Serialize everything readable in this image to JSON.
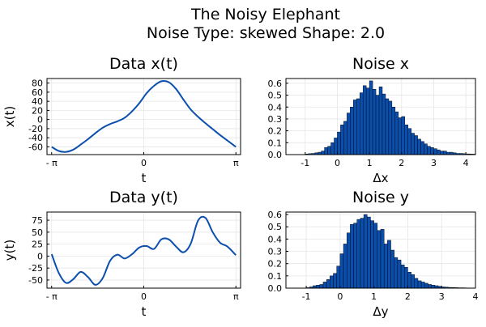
{
  "figure": {
    "title_line1": "The Noisy Elephant",
    "title_line2": "Noise Type: skewed Shape: 2.0"
  },
  "chart_data": [
    {
      "id": "data-x",
      "type": "line",
      "title": "Data x(t)",
      "xlabel": "t",
      "ylabel": "x(t)",
      "xlim": [
        -3.3,
        3.3
      ],
      "ylim": [
        -77,
        90
      ],
      "xticks": [
        -3.14159,
        0,
        3.14159
      ],
      "xticklabels": [
        "- π",
        "0",
        "π"
      ],
      "yticks": [
        80,
        60,
        40,
        20,
        0,
        -20,
        -40,
        -60
      ],
      "yticklabels": [
        "80",
        "60",
        "40",
        "20",
        "0",
        "-20",
        "-40",
        "-60"
      ],
      "grid": true,
      "legend": "none",
      "color": "#0b4fae",
      "x": [
        -3.14,
        -2.9,
        -2.65,
        -2.4,
        -2.15,
        -1.9,
        -1.65,
        -1.4,
        -1.15,
        -0.9,
        -0.65,
        -0.4,
        -0.15,
        0.1,
        0.35,
        0.6,
        0.85,
        1.1,
        1.35,
        1.6,
        1.85,
        2.1,
        2.35,
        2.6,
        2.85,
        3.14
      ],
      "y": [
        -60,
        -69,
        -71,
        -66,
        -55,
        -43,
        -30,
        -18,
        -10,
        -4,
        4,
        18,
        36,
        58,
        74,
        84,
        82,
        67,
        44,
        22,
        6,
        -8,
        -21,
        -34,
        -46,
        -60
      ]
    },
    {
      "id": "noise-x",
      "type": "bar",
      "title": "Noise x",
      "xlabel": "Δx",
      "ylabel": "",
      "xlim": [
        -1.6,
        4.3
      ],
      "ylim": [
        0,
        0.64
      ],
      "xticks": [
        -1,
        0,
        1,
        2,
        3,
        4
      ],
      "xticklabels": [
        "-1",
        "0",
        "1",
        "2",
        "3",
        "4"
      ],
      "yticks": [
        0.0,
        0.1,
        0.2,
        0.3,
        0.4,
        0.5,
        0.6
      ],
      "yticklabels": [
        "0.0",
        "0.1",
        "0.2",
        "0.3",
        "0.4",
        "0.5",
        "0.6"
      ],
      "grid": true,
      "legend": "none",
      "color": "#0b4fae",
      "bin_start": -1.0,
      "bin_width": 0.1,
      "values": [
        0.005,
        0.008,
        0.01,
        0.015,
        0.02,
        0.03,
        0.06,
        0.07,
        0.1,
        0.14,
        0.19,
        0.25,
        0.28,
        0.35,
        0.4,
        0.46,
        0.47,
        0.52,
        0.58,
        0.56,
        0.62,
        0.55,
        0.5,
        0.57,
        0.51,
        0.47,
        0.45,
        0.4,
        0.36,
        0.31,
        0.32,
        0.25,
        0.22,
        0.18,
        0.16,
        0.13,
        0.11,
        0.09,
        0.07,
        0.06,
        0.05,
        0.04,
        0.03,
        0.03,
        0.02,
        0.02,
        0.015,
        0.01,
        0.01,
        0.008,
        0.006,
        0.005,
        0.004
      ]
    },
    {
      "id": "data-y",
      "type": "line",
      "title": "Data y(t)",
      "xlabel": "t",
      "ylabel": "y(t)",
      "xlim": [
        -3.3,
        3.3
      ],
      "ylim": [
        -67,
        92
      ],
      "xticks": [
        -3.14159,
        0,
        3.14159
      ],
      "xticklabels": [
        "- π",
        "0",
        "π"
      ],
      "yticks": [
        75,
        50,
        25,
        0,
        -25,
        -50
      ],
      "yticklabels": [
        "75",
        "50",
        "25",
        "0",
        "-25",
        "-50"
      ],
      "grid": true,
      "legend": "none",
      "color": "#0b4fae",
      "x": [
        -3.14,
        -2.9,
        -2.65,
        -2.4,
        -2.15,
        -1.9,
        -1.65,
        -1.4,
        -1.15,
        -0.9,
        -0.65,
        -0.4,
        -0.15,
        0.1,
        0.35,
        0.6,
        0.85,
        1.1,
        1.35,
        1.6,
        1.85,
        2.1,
        2.35,
        2.6,
        2.85,
        3.14
      ],
      "y": [
        4,
        -35,
        -56,
        -48,
        -33,
        -44,
        -60,
        -46,
        -10,
        3,
        -5,
        4,
        18,
        21,
        15,
        35,
        35,
        20,
        8,
        26,
        74,
        80,
        50,
        28,
        20,
        2
      ]
    },
    {
      "id": "noise-y",
      "type": "bar",
      "title": "Noise y",
      "xlabel": "Δy",
      "ylabel": "",
      "xlim": [
        -1.6,
        4.0
      ],
      "ylim": [
        0,
        0.62
      ],
      "xticks": [
        -1,
        0,
        1,
        2,
        3,
        4
      ],
      "xticklabels": [
        "-1",
        "0",
        "1",
        "2",
        "3",
        "4"
      ],
      "yticks": [
        0.0,
        0.1,
        0.2,
        0.3,
        0.4,
        0.5,
        0.6
      ],
      "yticklabels": [
        "0.0",
        "0.1",
        "0.2",
        "0.3",
        "0.4",
        "0.5",
        "0.6"
      ],
      "grid": true,
      "legend": "none",
      "color": "#0b4fae",
      "bin_start": -1.0,
      "bin_width": 0.1,
      "values": [
        0.004,
        0.01,
        0.02,
        0.025,
        0.03,
        0.05,
        0.07,
        0.1,
        0.12,
        0.18,
        0.28,
        0.36,
        0.45,
        0.52,
        0.53,
        0.56,
        0.57,
        0.6,
        0.58,
        0.55,
        0.53,
        0.47,
        0.48,
        0.36,
        0.39,
        0.31,
        0.25,
        0.23,
        0.19,
        0.17,
        0.13,
        0.11,
        0.08,
        0.06,
        0.05,
        0.04,
        0.03,
        0.025,
        0.02,
        0.015,
        0.01,
        0.008,
        0.006,
        0.005,
        0.004,
        0.003,
        0.003,
        0.002
      ]
    }
  ]
}
